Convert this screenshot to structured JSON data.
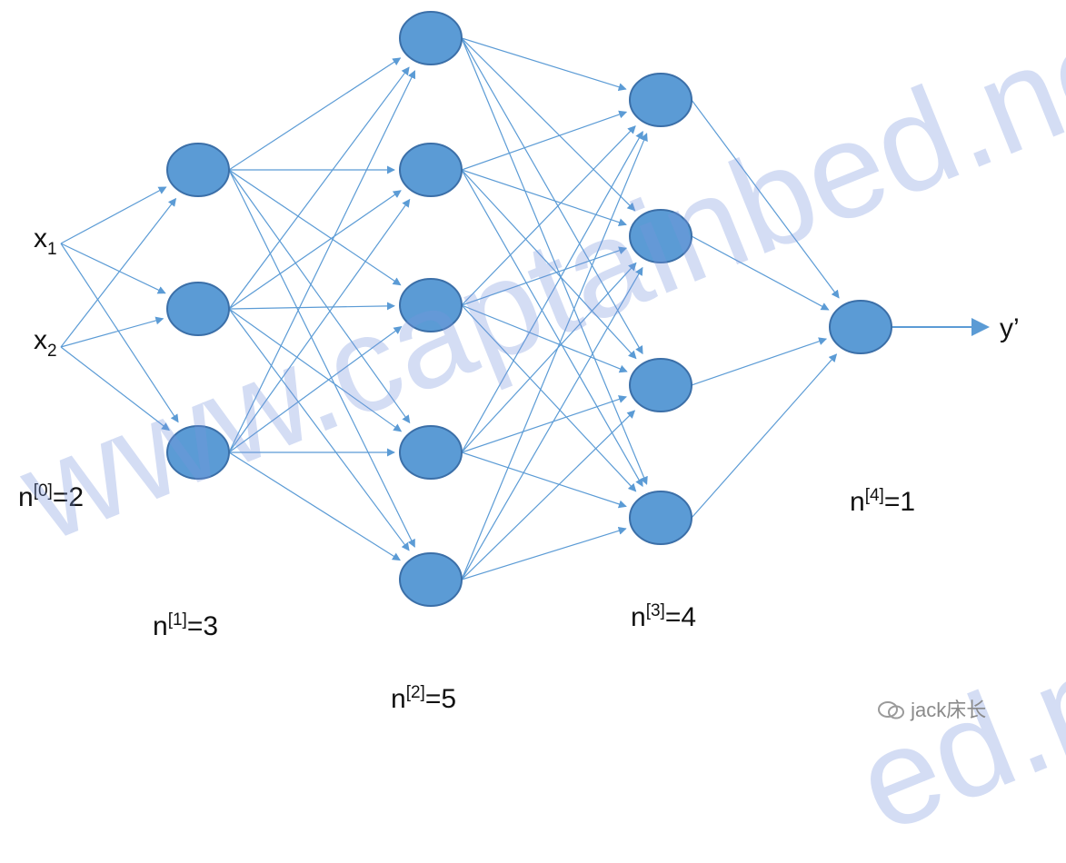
{
  "colors": {
    "node_fill": "#5b9bd5",
    "node_stroke": "#3b6fa8",
    "edge": "#5b9bd5",
    "watermark": "#7896dc"
  },
  "inputs": {
    "x1": {
      "base": "x",
      "sub": "1"
    },
    "x2": {
      "base": "x",
      "sub": "2"
    }
  },
  "output_label": "y’",
  "layer_sizes": [
    2,
    3,
    5,
    4,
    1
  ],
  "layer_labels": [
    {
      "base": "n",
      "sup": "[0]",
      "rest": "=2"
    },
    {
      "base": "n",
      "sup": "[1]",
      "rest": "=3"
    },
    {
      "base": "n",
      "sup": "[2]",
      "rest": "=5"
    },
    {
      "base": "n",
      "sup": "[3]",
      "rest": "=4"
    },
    {
      "base": "n",
      "sup": "[4]",
      "rest": "=1"
    }
  ],
  "watermark_text": "www.captainbed.net",
  "watermark_fragment": "ed.ne",
  "credit": {
    "icon": "wechat-icon",
    "text": "jack床长"
  }
}
